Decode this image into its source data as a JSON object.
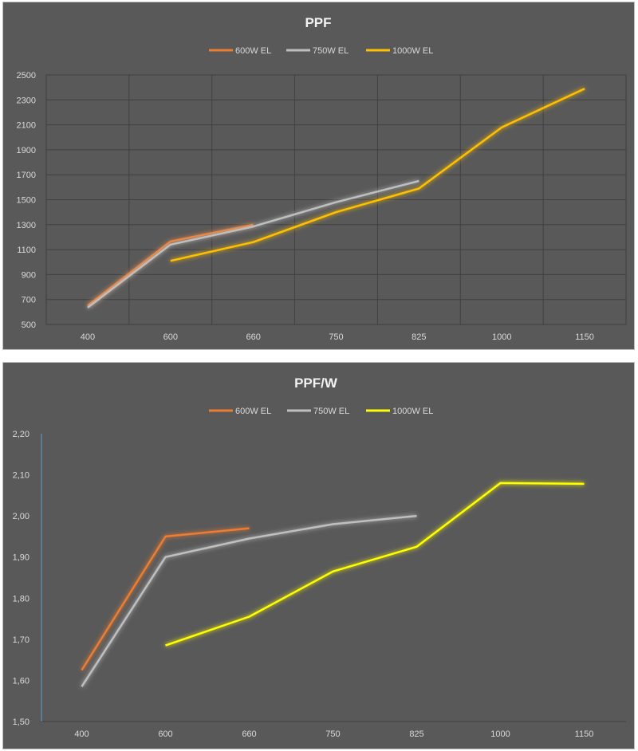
{
  "colors": {
    "background": "#595959",
    "grid": "#404040",
    "text": "#d9d9d9",
    "title": "#f2f2f2"
  },
  "chart_data": [
    {
      "type": "line",
      "title": "PPF",
      "categories": [
        "400",
        "600",
        "660",
        "750",
        "825",
        "1000",
        "1150"
      ],
      "ylim": [
        500,
        2500
      ],
      "yticks": [
        "500",
        "700",
        "900",
        "1100",
        "1300",
        "1500",
        "1700",
        "1900",
        "2100",
        "2300",
        "2500"
      ],
      "grid": true,
      "legend_position": "top",
      "series": [
        {
          "name": "600W EL",
          "color": "#ed7d31",
          "values": [
            650,
            1165,
            1300,
            null,
            null,
            null,
            null
          ]
        },
        {
          "name": "750W EL",
          "color": "#bfbfbf",
          "values": [
            635,
            1140,
            1285,
            1480,
            1650,
            null,
            null
          ]
        },
        {
          "name": "1000W EL",
          "color": "#ffc000",
          "values": [
            null,
            1010,
            1160,
            1400,
            1590,
            2080,
            2390
          ]
        }
      ]
    },
    {
      "type": "line",
      "title": "PPF/W",
      "categories": [
        "400",
        "600",
        "660",
        "750",
        "825",
        "1000",
        "1150"
      ],
      "ylim": [
        1.5,
        2.2
      ],
      "yticks": [
        "1,50",
        "1,60",
        "1,70",
        "1,80",
        "1,90",
        "2,00",
        "2,10",
        "2,20"
      ],
      "grid": false,
      "legend_position": "top",
      "series": [
        {
          "name": "600W EL",
          "color": "#ed7d31",
          "values": [
            1.625,
            1.95,
            1.97,
            null,
            null,
            null,
            null
          ]
        },
        {
          "name": "750W EL",
          "color": "#bfbfbf",
          "values": [
            1.585,
            1.9,
            1.945,
            1.98,
            2.0,
            null,
            null
          ]
        },
        {
          "name": "1000W EL",
          "color": "#ffff00",
          "values": [
            null,
            1.685,
            1.755,
            1.865,
            1.925,
            2.08,
            2.078
          ]
        }
      ]
    }
  ]
}
